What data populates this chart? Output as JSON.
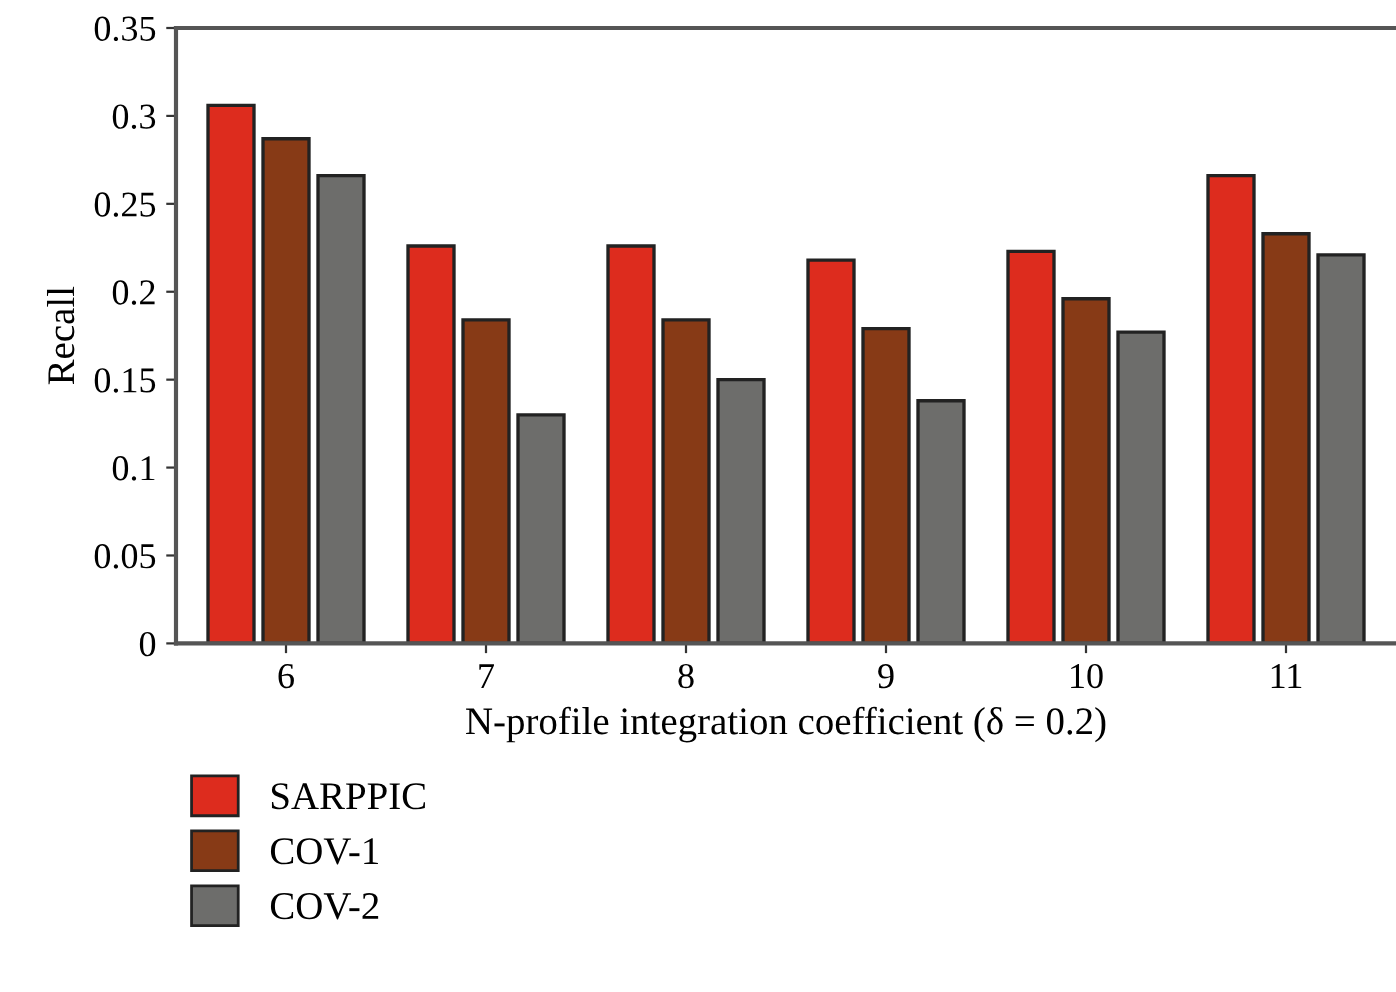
{
  "chart_data": {
    "type": "bar",
    "xlabel": "N-profile integration coefficient (δ = 0.2)",
    "ylabel": "Recall",
    "categories": [
      "6",
      "7",
      "8",
      "9",
      "10",
      "11"
    ],
    "series": [
      {
        "name": "SARPPIC",
        "color": "#dd2c1e",
        "values": [
          0.306,
          0.226,
          0.226,
          0.218,
          0.223,
          0.266
        ]
      },
      {
        "name": "COV-1",
        "color": "#873a16",
        "values": [
          0.287,
          0.184,
          0.184,
          0.179,
          0.196,
          0.233
        ]
      },
      {
        "name": "COV-2",
        "color": "#6d6d6b",
        "values": [
          0.266,
          0.13,
          0.15,
          0.138,
          0.177,
          0.221
        ]
      }
    ],
    "ylim": [
      0,
      0.35
    ],
    "yticks": [
      0,
      {
        "value": 0.05,
        "label": "0.05"
      },
      {
        "value": 0.1,
        "label": "0.1"
      },
      {
        "value": 0.15,
        "label": "0.15"
      },
      {
        "value": 0.2,
        "label": "0.2"
      },
      {
        "value": 0.25,
        "label": "0.25"
      },
      {
        "value": 0.3,
        "label": "0.3"
      },
      {
        "value": 0.35,
        "label": "0.35"
      }
    ],
    "grid": false,
    "legend": "bottom left"
  }
}
